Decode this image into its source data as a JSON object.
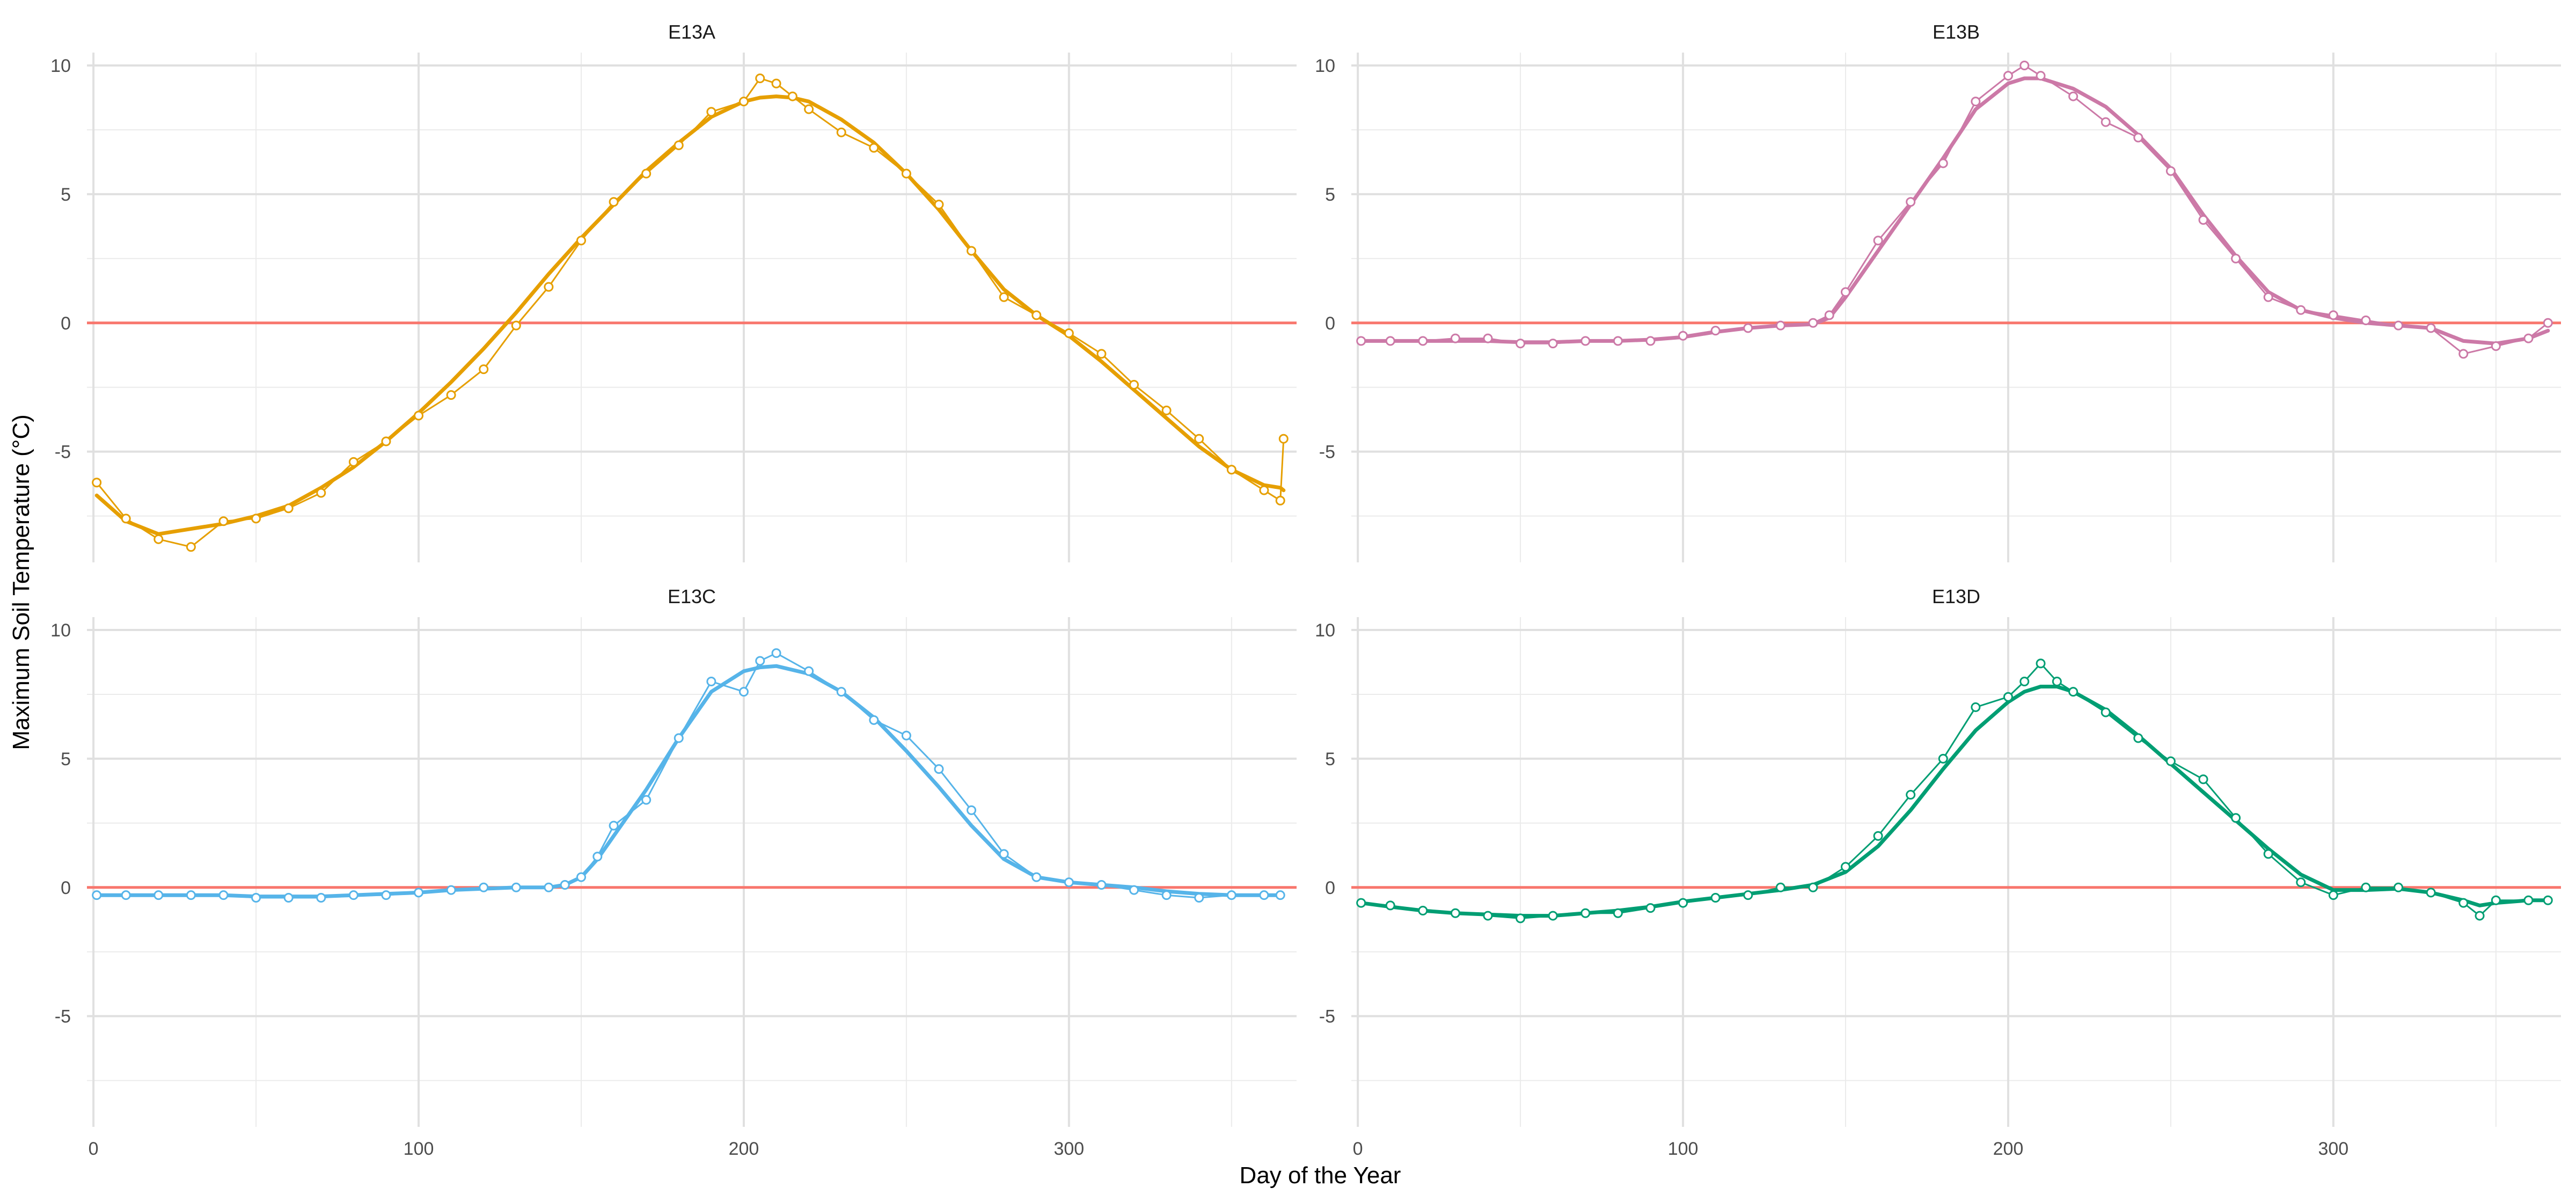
{
  "chart_data": {
    "type": "line",
    "xlabel": "Day of the Year",
    "ylabel": "Maximum Soil Temperature (°C)",
    "xlim": [
      -2,
      370
    ],
    "ylim": [
      -9.3,
      10.5
    ],
    "x_ticks": [
      0,
      100,
      200,
      300
    ],
    "y_ticks": [
      -5,
      0,
      5,
      10
    ],
    "reference_line": {
      "y": 0,
      "color": "#f8766d"
    },
    "grid": true,
    "legend": "none",
    "layout": "2x2 facets",
    "panels": [
      {
        "name": "E13A",
        "color": "#e69f00",
        "x": [
          1,
          10,
          20,
          30,
          40,
          50,
          60,
          70,
          80,
          90,
          100,
          110,
          120,
          130,
          140,
          150,
          160,
          170,
          180,
          190,
          200,
          205,
          210,
          215,
          220,
          230,
          240,
          250,
          260,
          270,
          280,
          290,
          300,
          310,
          320,
          330,
          340,
          350,
          360,
          365,
          366
        ],
        "y": [
          -6.2,
          -7.6,
          -8.4,
          -8.7,
          -7.7,
          -7.6,
          -7.2,
          -6.6,
          -5.4,
          -4.6,
          -3.6,
          -2.8,
          -1.8,
          -0.1,
          1.4,
          3.2,
          4.7,
          5.8,
          6.9,
          8.2,
          8.6,
          9.5,
          9.3,
          8.8,
          8.3,
          7.4,
          6.8,
          5.8,
          4.6,
          2.8,
          1.0,
          0.3,
          -0.4,
          -1.2,
          -2.4,
          -3.4,
          -4.5,
          -5.7,
          -6.5,
          -6.9,
          -4.5
        ],
        "smooth_y": [
          -6.7,
          -7.7,
          -8.2,
          -8.0,
          -7.8,
          -7.5,
          -7.1,
          -6.4,
          -5.6,
          -4.6,
          -3.5,
          -2.3,
          -1.0,
          0.4,
          1.9,
          3.3,
          4.6,
          5.9,
          7.0,
          8.0,
          8.6,
          8.75,
          8.8,
          8.75,
          8.6,
          7.9,
          7.0,
          5.8,
          4.4,
          2.8,
          1.3,
          0.3,
          -0.5,
          -1.5,
          -2.6,
          -3.7,
          -4.8,
          -5.7,
          -6.3,
          -6.4,
          -6.5
        ]
      },
      {
        "name": "E13B",
        "color": "#cc79a7",
        "x": [
          1,
          10,
          20,
          30,
          40,
          50,
          60,
          70,
          80,
          90,
          100,
          110,
          120,
          130,
          140,
          145,
          150,
          160,
          170,
          180,
          190,
          200,
          205,
          210,
          220,
          230,
          240,
          250,
          260,
          270,
          280,
          290,
          300,
          310,
          320,
          330,
          340,
          350,
          360,
          366
        ],
        "y": [
          -0.7,
          -0.7,
          -0.7,
          -0.6,
          -0.6,
          -0.8,
          -0.8,
          -0.7,
          -0.7,
          -0.7,
          -0.5,
          -0.3,
          -0.2,
          -0.1,
          0.0,
          0.3,
          1.2,
          3.2,
          4.7,
          6.2,
          8.6,
          9.6,
          10.0,
          9.6,
          8.8,
          7.8,
          7.2,
          5.9,
          4.0,
          2.5,
          1.0,
          0.5,
          0.3,
          0.1,
          -0.1,
          -0.2,
          -1.2,
          -0.9,
          -0.6,
          0.0
        ],
        "smooth_y": [
          -0.7,
          -0.7,
          -0.7,
          -0.7,
          -0.7,
          -0.75,
          -0.75,
          -0.7,
          -0.7,
          -0.65,
          -0.55,
          -0.35,
          -0.2,
          -0.1,
          -0.05,
          0.2,
          1.0,
          2.8,
          4.6,
          6.4,
          8.3,
          9.3,
          9.5,
          9.5,
          9.1,
          8.4,
          7.3,
          6.0,
          4.2,
          2.6,
          1.2,
          0.5,
          0.2,
          0.0,
          -0.1,
          -0.2,
          -0.7,
          -0.8,
          -0.6,
          -0.3
        ]
      },
      {
        "name": "E13C",
        "color": "#56b4e9",
        "x": [
          1,
          10,
          20,
          30,
          40,
          50,
          60,
          70,
          80,
          90,
          100,
          110,
          120,
          130,
          140,
          145,
          150,
          155,
          160,
          170,
          180,
          190,
          200,
          205,
          210,
          220,
          230,
          240,
          250,
          260,
          270,
          280,
          290,
          300,
          310,
          320,
          330,
          340,
          350,
          360,
          365
        ],
        "y": [
          -0.3,
          -0.3,
          -0.3,
          -0.3,
          -0.3,
          -0.4,
          -0.4,
          -0.4,
          -0.3,
          -0.3,
          -0.2,
          -0.1,
          0.0,
          0.0,
          0.0,
          0.1,
          0.4,
          1.2,
          2.4,
          3.4,
          5.8,
          8.0,
          7.6,
          8.8,
          9.1,
          8.4,
          7.6,
          6.5,
          5.9,
          4.6,
          3.0,
          1.3,
          0.4,
          0.2,
          0.1,
          -0.1,
          -0.3,
          -0.4,
          -0.3,
          -0.3,
          -0.3
        ],
        "smooth_y": [
          -0.3,
          -0.3,
          -0.3,
          -0.3,
          -0.3,
          -0.35,
          -0.35,
          -0.35,
          -0.3,
          -0.25,
          -0.2,
          -0.1,
          -0.05,
          0.0,
          0.0,
          0.1,
          0.4,
          1.1,
          2.0,
          3.8,
          5.8,
          7.6,
          8.4,
          8.55,
          8.6,
          8.3,
          7.6,
          6.6,
          5.3,
          3.9,
          2.4,
          1.1,
          0.4,
          0.2,
          0.1,
          0.0,
          -0.15,
          -0.25,
          -0.3,
          -0.3,
          -0.3
        ]
      },
      {
        "name": "E13D",
        "color": "#009e73",
        "x": [
          1,
          10,
          20,
          30,
          40,
          50,
          60,
          70,
          80,
          90,
          100,
          110,
          120,
          130,
          140,
          150,
          160,
          170,
          180,
          190,
          200,
          205,
          210,
          215,
          220,
          230,
          240,
          250,
          260,
          270,
          280,
          290,
          300,
          310,
          320,
          330,
          340,
          345,
          350,
          360,
          366
        ],
        "y": [
          -0.6,
          -0.7,
          -0.9,
          -1.0,
          -1.1,
          -1.2,
          -1.1,
          -1.0,
          -1.0,
          -0.8,
          -0.6,
          -0.4,
          -0.3,
          0.0,
          0.0,
          0.8,
          2.0,
          3.6,
          5.0,
          7.0,
          7.4,
          8.0,
          8.7,
          8.0,
          7.6,
          6.8,
          5.8,
          4.9,
          4.2,
          2.7,
          1.3,
          0.2,
          -0.3,
          0.0,
          0.0,
          -0.2,
          -0.6,
          -1.1,
          -0.5,
          -0.5,
          -0.5
        ],
        "smooth_y": [
          -0.6,
          -0.75,
          -0.9,
          -1.0,
          -1.05,
          -1.1,
          -1.1,
          -1.0,
          -0.9,
          -0.75,
          -0.55,
          -0.4,
          -0.25,
          -0.1,
          0.1,
          0.6,
          1.6,
          3.0,
          4.6,
          6.1,
          7.2,
          7.6,
          7.8,
          7.8,
          7.6,
          6.9,
          5.9,
          4.8,
          3.7,
          2.6,
          1.5,
          0.5,
          -0.1,
          -0.1,
          -0.05,
          -0.2,
          -0.5,
          -0.7,
          -0.6,
          -0.5,
          -0.5
        ]
      }
    ]
  }
}
